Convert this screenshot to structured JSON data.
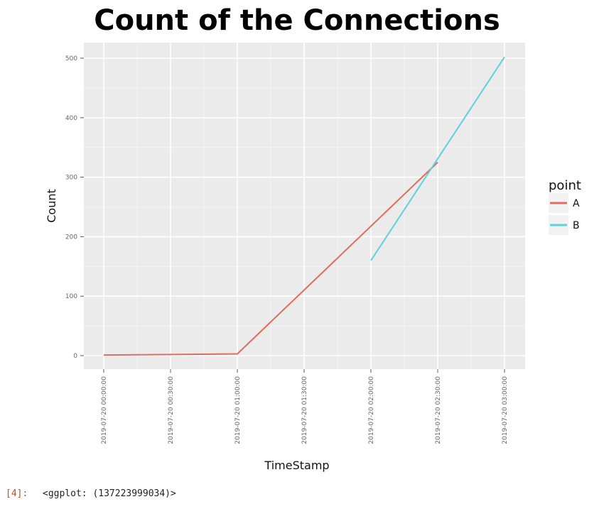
{
  "output": {
    "prompt": "[4]:",
    "text": "<ggplot: (137223999034)>"
  },
  "chart_data": {
    "type": "line",
    "title": "Count of the Connections",
    "xlabel": "TimeStamp",
    "ylabel": "Count",
    "x_ticks": [
      "2019-07-20 00:00:00",
      "2019-07-20 00:30:00",
      "2019-07-20 01:00:00",
      "2019-07-20 01:30:00",
      "2019-07-20 02:00:00",
      "2019-07-20 02:30:00",
      "2019-07-20 03:00:00"
    ],
    "y_ticks": [
      0,
      100,
      200,
      300,
      400,
      500
    ],
    "xlim": [
      "2019-07-20 00:00:00",
      "2019-07-20 03:00:00"
    ],
    "ylim": [
      0,
      500
    ],
    "grid": true,
    "legend": {
      "title": "point",
      "position": "right"
    },
    "series": [
      {
        "name": "A",
        "color": "#e06b5f",
        "points": [
          {
            "x": "2019-07-20 00:00:00",
            "y": 1
          },
          {
            "x": "2019-07-20 01:00:00",
            "y": 3
          },
          {
            "x": "2019-07-20 02:30:00",
            "y": 325
          }
        ]
      },
      {
        "name": "B",
        "color": "#5fd0dc",
        "points": [
          {
            "x": "2019-07-20 02:00:00",
            "y": 160
          },
          {
            "x": "2019-07-20 03:00:00",
            "y": 502
          }
        ]
      }
    ]
  }
}
